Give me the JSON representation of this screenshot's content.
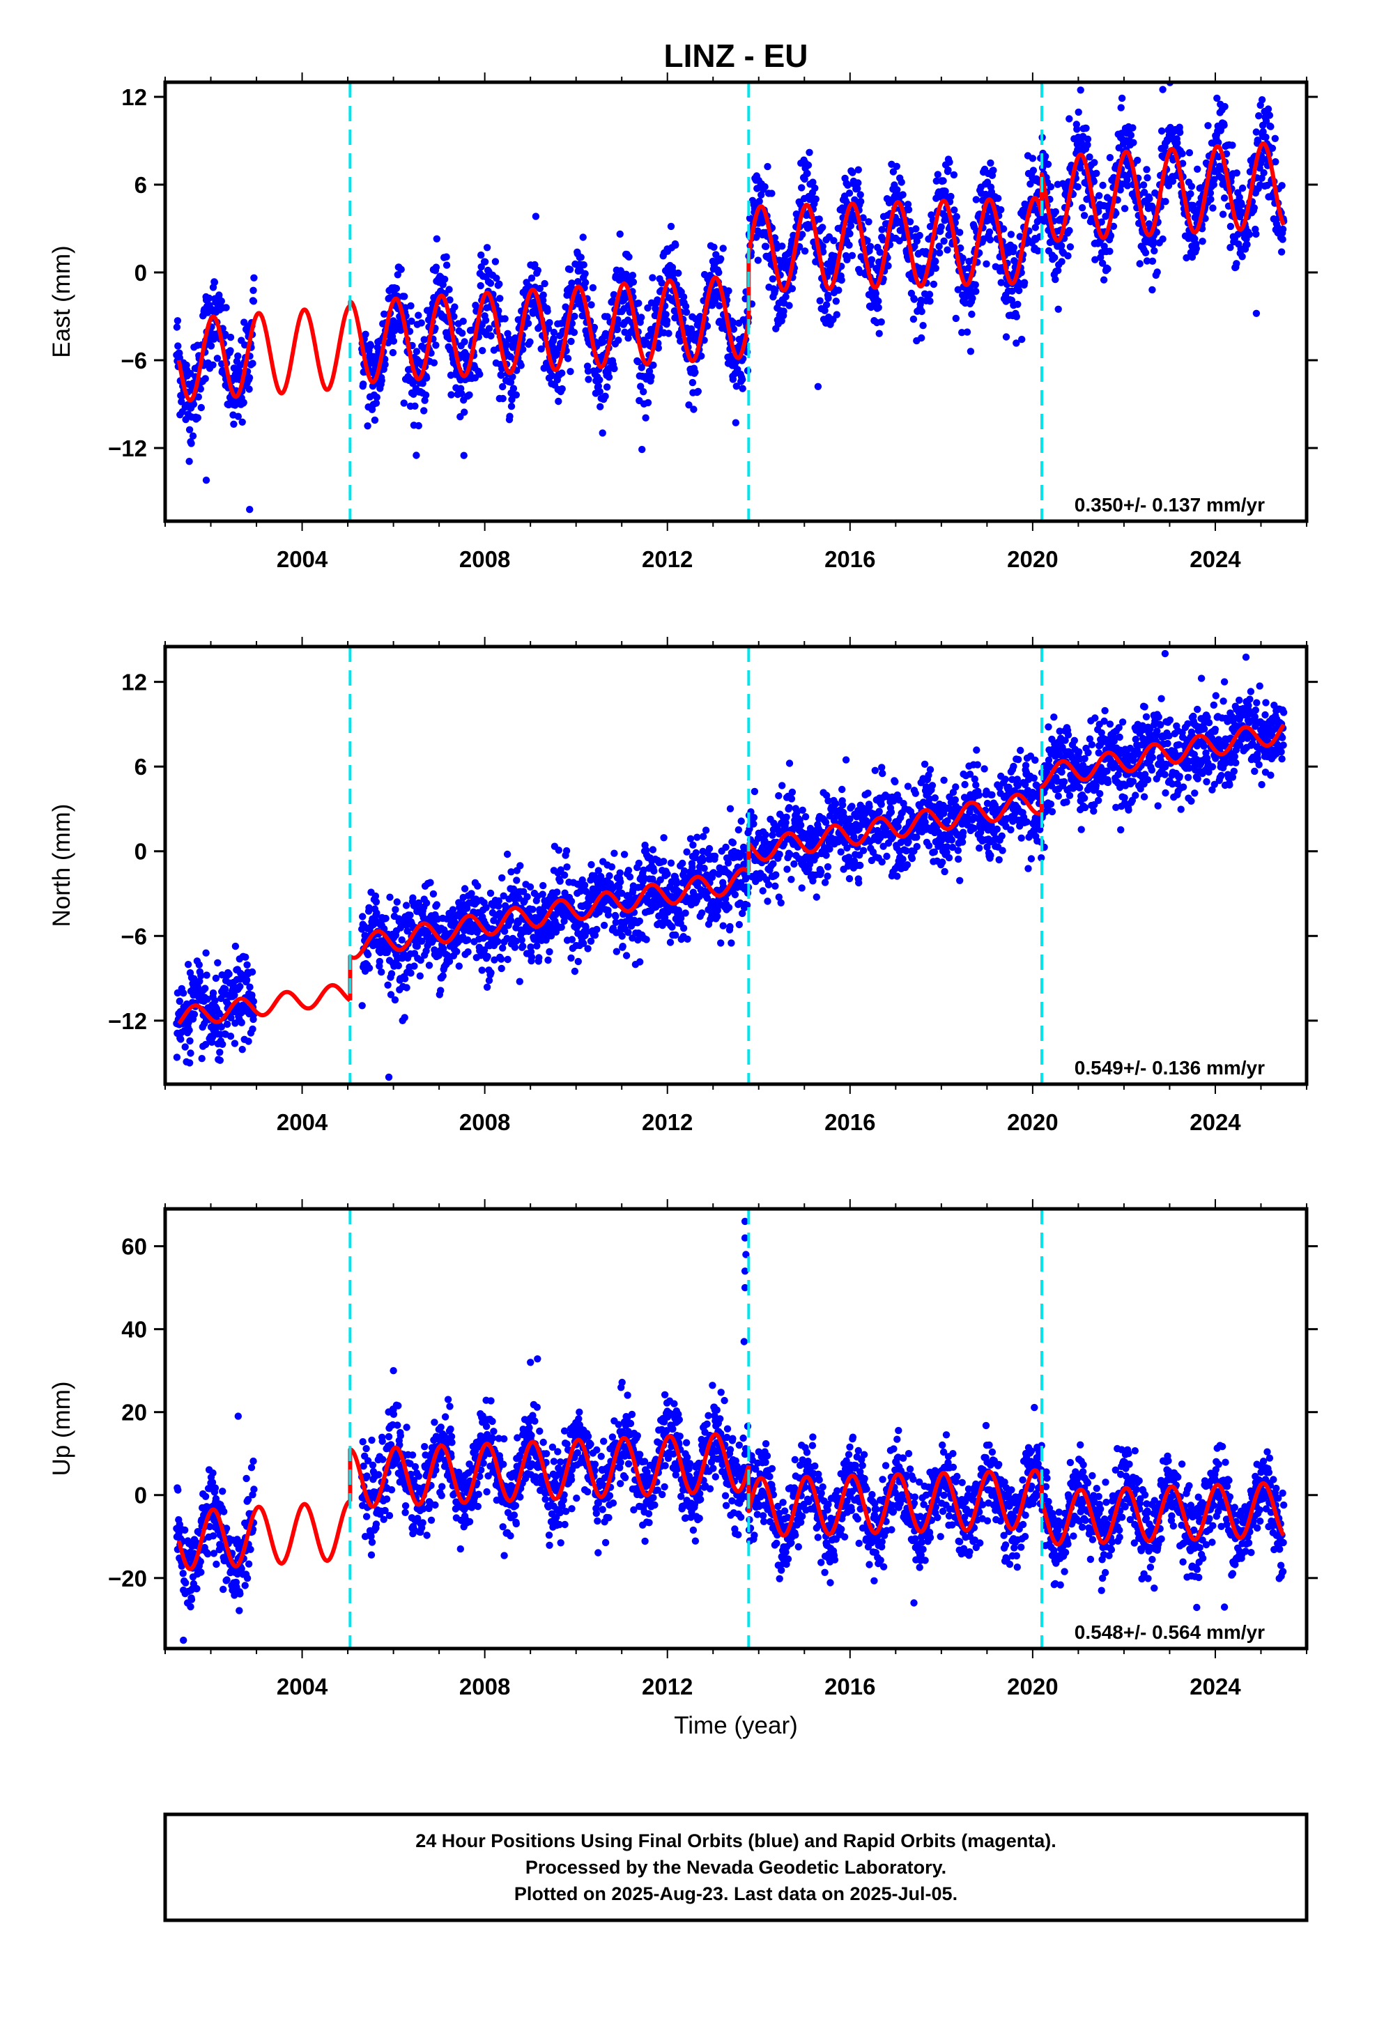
{
  "title": "LINZ - EU",
  "xlabel": "Time (year)",
  "footer": {
    "lines": [
      "24 Hour Positions Using Final Orbits (blue) and Rapid Orbits (magenta).",
      "Processed by the Nevada Geodetic Laboratory.",
      "Plotted on 2025-Aug-23. Last data on 2025-Jul-05."
    ]
  },
  "colors": {
    "data_points": "#0000ff",
    "model_line": "#ff0000",
    "equipment_change": "#00e5ee",
    "frame": "#000000"
  },
  "chart_data": [
    {
      "type": "scatter",
      "name": "east",
      "ylabel": "East (mm)",
      "xlim": [
        2001.0,
        2026.0
      ],
      "ylim": [
        -17.0,
        13.0
      ],
      "xticks": [
        2004,
        2008,
        2012,
        2016,
        2020,
        2024
      ],
      "yticks": [
        -12,
        -6,
        0,
        6,
        12
      ],
      "rate_text": "0.350+/- 0.137 mm/yr",
      "vertical_lines": [
        2005.05,
        2013.78,
        2020.2
      ],
      "model": {
        "segments": [
          {
            "x_start": 2001.3,
            "x_end": 2005.05,
            "y_start": -6.0,
            "y_end": -5.1,
            "amplitude": 2.8
          },
          {
            "x_start": 2005.05,
            "x_end": 2013.78,
            "y_start": -4.8,
            "y_end": -3.0,
            "amplitude": 2.8
          },
          {
            "x_start": 2013.78,
            "x_end": 2020.2,
            "y_start": 1.6,
            "y_end": 2.2,
            "amplitude": 2.9
          },
          {
            "x_start": 2020.2,
            "x_end": 2025.5,
            "y_start": 5.0,
            "y_end": 6.0,
            "amplitude": 2.9
          }
        ],
        "period_years": 1.0,
        "phase": 0.2
      },
      "scatter_noise": 1.6,
      "data_gap": [
        2002.95,
        2005.3
      ],
      "outliers": [
        [
          2002.85,
          -16.2
        ],
        [
          2022.85,
          12.5
        ],
        [
          2024.9,
          -2.8
        ],
        [
          2001.9,
          -14.2
        ],
        [
          2006.5,
          -12.5
        ],
        [
          2015.3,
          -7.8
        ],
        [
          2020.8,
          10.5
        ]
      ]
    },
    {
      "type": "scatter",
      "name": "north",
      "ylabel": "North (mm)",
      "xlim": [
        2001.0,
        2026.0
      ],
      "ylim": [
        -16.5,
        14.5
      ],
      "xticks": [
        2004,
        2008,
        2012,
        2016,
        2020,
        2024
      ],
      "yticks": [
        -12,
        -6,
        0,
        6,
        12
      ],
      "rate_text": "0.549+/- 0.136 mm/yr",
      "vertical_lines": [
        2005.05,
        2013.78,
        2020.2
      ],
      "model": {
        "segments": [
          {
            "x_start": 2001.3,
            "x_end": 2005.05,
            "y_start": -11.8,
            "y_end": -10.0,
            "amplitude": 0.7
          },
          {
            "x_start": 2005.05,
            "x_end": 2013.78,
            "y_start": -6.8,
            "y_end": -2.0,
            "amplitude": 0.8
          },
          {
            "x_start": 2013.78,
            "x_end": 2020.2,
            "y_start": 0.0,
            "y_end": 3.5,
            "amplitude": 0.8
          },
          {
            "x_start": 2020.2,
            "x_end": 2025.5,
            "y_start": 5.3,
            "y_end": 8.5,
            "amplitude": 0.8
          }
        ],
        "period_years": 1.0,
        "phase": 0.6
      },
      "scatter_noise": 1.5,
      "data_gap": [
        2002.95,
        2005.3
      ],
      "outliers": [
        [
          2022.9,
          14.0
        ],
        [
          2005.9,
          -16.0
        ],
        [
          2006.2,
          -12.0
        ],
        [
          2024.2,
          12.0
        ],
        [
          2013.4,
          -6.5
        ]
      ]
    },
    {
      "type": "scatter",
      "name": "up",
      "ylabel": "Up (mm)",
      "xlim": [
        2001.0,
        2026.0
      ],
      "ylim": [
        -37.0,
        69.0
      ],
      "xticks": [
        2004,
        2008,
        2012,
        2016,
        2020,
        2024
      ],
      "yticks": [
        -20,
        0,
        20,
        40,
        60
      ],
      "rate_text": "0.548+/- 0.564 mm/yr",
      "vertical_lines": [
        2005.05,
        2013.78,
        2020.2
      ],
      "model": {
        "segments": [
          {
            "x_start": 2001.3,
            "x_end": 2005.05,
            "y_start": -11.0,
            "y_end": -8.5,
            "amplitude": 7.0
          },
          {
            "x_start": 2005.05,
            "x_end": 2013.78,
            "y_start": 4.0,
            "y_end": 8.0,
            "amplitude": 7.0
          },
          {
            "x_start": 2013.78,
            "x_end": 2020.2,
            "y_start": -3.0,
            "y_end": -1.0,
            "amplitude": 7.0
          },
          {
            "x_start": 2020.2,
            "x_end": 2025.5,
            "y_start": -5.5,
            "y_end": -3.5,
            "amplitude": 6.5
          }
        ],
        "period_years": 1.0,
        "phase": 0.2
      },
      "scatter_noise": 5.0,
      "data_gap": [
        2002.95,
        2005.3
      ],
      "outliers": [
        [
          2013.7,
          66.0
        ],
        [
          2013.7,
          62.0
        ],
        [
          2013.72,
          58.0
        ],
        [
          2013.7,
          54.0
        ],
        [
          2013.7,
          50.0
        ],
        [
          2013.68,
          37.0
        ],
        [
          2001.4,
          -35.0
        ],
        [
          2002.6,
          19.0
        ],
        [
          2006.0,
          30.0
        ],
        [
          2009.0,
          32.0
        ],
        [
          2017.4,
          -26.0
        ],
        [
          2024.2,
          -27.0
        ]
      ]
    }
  ]
}
